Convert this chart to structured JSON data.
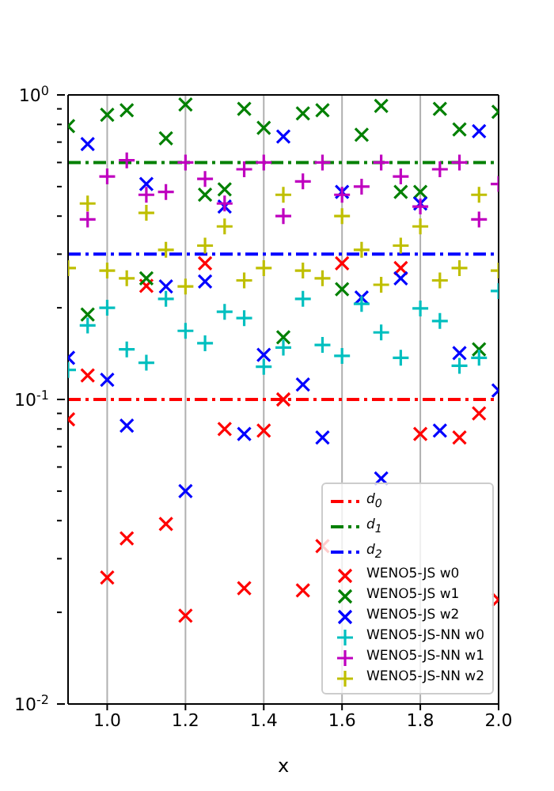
{
  "chart_data": {
    "type": "scatter",
    "xlabel": "x",
    "log": "y",
    "grid": "x",
    "legend": "bottom right",
    "x": [
      0.9,
      0.95,
      1.0,
      1.05,
      1.1,
      1.15,
      1.2,
      1.25,
      1.3,
      1.35,
      1.4,
      1.45,
      1.5,
      1.55,
      1.6,
      1.65,
      1.7,
      1.75,
      1.8,
      1.85,
      1.9,
      1.95,
      2.0
    ],
    "xlim": [
      0.9,
      2.0
    ],
    "xticks": [
      {
        "value": 1.0,
        "label": "1.0"
      },
      {
        "value": 1.2,
        "label": "1.2"
      },
      {
        "value": 1.4,
        "label": "1.4"
      },
      {
        "value": 1.6,
        "label": "1.6"
      },
      {
        "value": 1.8,
        "label": "1.8"
      },
      {
        "value": 2.0,
        "label": "2.0"
      }
    ],
    "ylim": [
      0.01,
      1
    ],
    "yticks": [
      {
        "value": 0.01,
        "label": "10$^{-2}$"
      },
      {
        "value": 0.02,
        "label": null
      },
      {
        "value": 0.03,
        "label": null
      },
      {
        "value": 0.04,
        "label": null
      },
      {
        "value": 0.05,
        "label": null
      },
      {
        "value": 0.06,
        "label": null
      },
      {
        "value": 0.07,
        "label": null
      },
      {
        "value": 0.08,
        "label": null
      },
      {
        "value": 0.09,
        "label": null
      },
      {
        "value": 0.1,
        "label": "10$^{-1}$"
      },
      {
        "value": 0.2,
        "label": null
      },
      {
        "value": 0.3,
        "label": null
      },
      {
        "value": 0.4,
        "label": null
      },
      {
        "value": 0.5,
        "label": null
      },
      {
        "value": 0.6,
        "label": null
      },
      {
        "value": 0.7,
        "label": null
      },
      {
        "value": 0.8,
        "label": null
      },
      {
        "value": 0.9,
        "label": null
      },
      {
        "value": 1,
        "label": "10$^{0}$"
      }
    ],
    "ref_lines": [
      {
        "axis": "y",
        "value": 0.1,
        "label": "d$_{0}$",
        "color": "#ff0000",
        "line_style": "dashdot"
      },
      {
        "axis": "y",
        "value": 0.6,
        "label": "d$_{1}$",
        "color": "#008000",
        "line_style": "dashdot"
      },
      {
        "axis": "y",
        "value": 0.3,
        "label": "d$_{2}$",
        "color": "#0000ff",
        "line_style": "dashdot"
      }
    ],
    "series": [
      {
        "name": "WENO5-JS w0",
        "color": "#ff0000",
        "marker": "x",
        "values": [
          0.086,
          0.12,
          0.026,
          0.035,
          0.236,
          0.039,
          0.0195,
          0.28,
          0.08,
          0.024,
          0.079,
          0.1,
          0.0236,
          0.033,
          0.28,
          null,
          null,
          0.27,
          0.077,
          null,
          0.075,
          0.09,
          0.022
        ]
      },
      {
        "name": "WENO5-JS w1",
        "color": "#008000",
        "marker": "x",
        "values": [
          0.79,
          0.19,
          0.86,
          0.89,
          0.25,
          0.72,
          0.93,
          0.47,
          0.49,
          0.9,
          0.78,
          0.16,
          0.87,
          0.89,
          0.23,
          0.74,
          0.92,
          0.48,
          0.48,
          0.9,
          0.77,
          0.146,
          0.88
        ]
      },
      {
        "name": "WENO5-JS w2",
        "color": "#0000ff",
        "marker": "x",
        "values": [
          0.137,
          0.69,
          0.116,
          0.082,
          0.51,
          0.235,
          0.05,
          0.244,
          0.43,
          0.077,
          0.14,
          0.73,
          0.112,
          0.075,
          0.48,
          0.216,
          0.055,
          0.25,
          0.44,
          0.079,
          0.142,
          0.76,
          0.107
        ]
      },
      {
        "name": "WENO5-JS-NN w0",
        "color": "#00bfbf",
        "marker": "cross",
        "values": [
          0.125,
          0.175,
          0.2,
          0.146,
          0.132,
          0.214,
          0.168,
          0.153,
          0.194,
          0.185,
          0.128,
          0.148,
          0.214,
          0.151,
          0.139,
          0.206,
          0.166,
          0.137,
          0.199,
          0.181,
          0.129,
          0.137,
          0.227
        ]
      },
      {
        "name": "WENO5-JS-NN w1",
        "color": "#bf00bf",
        "marker": "cross",
        "values": [
          null,
          0.39,
          0.54,
          0.61,
          0.47,
          0.48,
          0.6,
          0.53,
          0.44,
          0.57,
          0.6,
          0.4,
          0.52,
          0.6,
          0.47,
          0.5,
          0.6,
          0.54,
          0.43,
          0.57,
          0.6,
          0.39,
          0.51
        ]
      },
      {
        "name": "WENO5-JS-NN w2",
        "color": "#bfbf00",
        "marker": "cross",
        "values": [
          0.27,
          0.44,
          0.265,
          0.25,
          0.41,
          0.31,
          0.235,
          0.32,
          0.37,
          0.246,
          0.27,
          0.47,
          0.265,
          0.25,
          0.4,
          0.31,
          0.238,
          0.32,
          0.37,
          0.246,
          0.27,
          0.47,
          0.265
        ]
      }
    ]
  }
}
